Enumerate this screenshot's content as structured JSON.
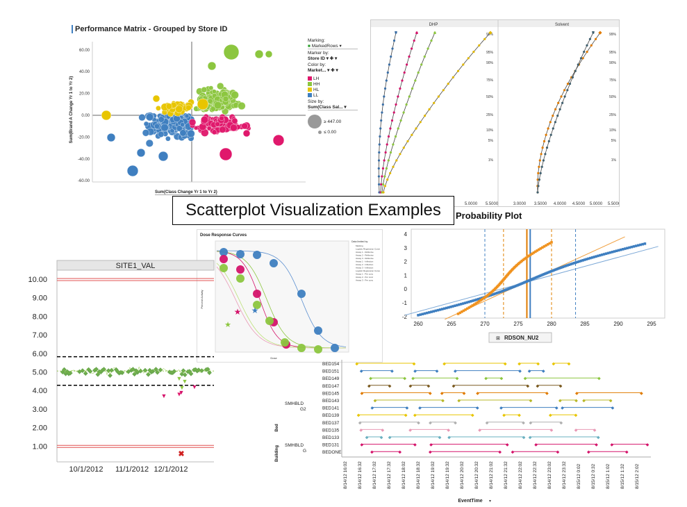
{
  "slide": {
    "title": "Scatterplot Visualization Examples"
  },
  "perf": {
    "title": "Performance Matrix - Grouped by Store ID",
    "ylabel": "Sum(Brand A Change Yr 1 to Yr 2)",
    "xlabel": "Sum(Class Change Yr 1 to Yr 2)",
    "yticks": [
      "60.00",
      "40.00",
      "20.00",
      "0.00",
      "-20.00",
      "-40.00",
      "-60.00"
    ],
    "marking_label": "Marking:",
    "marking_value": "MarkedRows",
    "markerby_label": "Marker by:",
    "markerby_value": "Store ID",
    "colorby_label": "Color by:",
    "colorby_value": "Market...",
    "legend": [
      {
        "label": "LH",
        "color": "#e0186c"
      },
      {
        "label": "HH",
        "color": "#8cc63f"
      },
      {
        "label": "HL",
        "color": "#e8c500"
      },
      {
        "label": "LL",
        "color": "#3f7fc0"
      }
    ],
    "sizeby_label": "Size by:",
    "sizeby_value": "Sum(Class Sal...",
    "size_max": "≥ 447.00",
    "size_min": "≤ 0.00"
  },
  "prob": {
    "panel_left": "DHP",
    "panel_right": "Solvent",
    "xticks_left": [
      "5.0000",
      "5.5000"
    ],
    "xticks_right": [
      "3.0000",
      "3.5000",
      "4.0000",
      "4.5000",
      "5.0000",
      "5.5000"
    ],
    "pct_labels": [
      "99%",
      "95%",
      "90%",
      "75%",
      "50%",
      "25%",
      "10%",
      "5%",
      "1%"
    ],
    "caption": "Probability Plot"
  },
  "dose": {
    "title": "Dose Response Curves",
    "ylabel": "Percent Activity",
    "xlabel": "Dose",
    "legend_title": "Data limited by:",
    "legend_items": [
      "Marking",
      "Logistic Regression Curve",
      "Assay 1 - Reflexive",
      "Assay 2 - Reflexive",
      "Assay 3 - Reflexive",
      "Assay 1 - Inflection",
      "Assay 2 - Inflection",
      "Assay 3 - Inflection",
      "Logistic Regression Curve",
      "Assay 1 - Per conc",
      "Assay 2 - Per conc",
      "Assay 3 - Per conc"
    ]
  },
  "site": {
    "title": "SITE1_VAL",
    "yticks": [
      "10.00",
      "9.00",
      "8.00",
      "7.00",
      "6.00",
      "5.00",
      "4.00",
      "3.00",
      "2.00",
      "1.00"
    ],
    "xticks": [
      "10/1/2012",
      "11/1/2012",
      "12/1/2012"
    ]
  },
  "qq": {
    "yticks": [
      "4",
      "3",
      "2",
      "1",
      "0",
      "-1",
      "-2"
    ],
    "xticks": [
      "260",
      "265",
      "270",
      "275",
      "280",
      "285",
      "290",
      "295"
    ],
    "xlabel": "RDSON_NU2"
  },
  "gantt": {
    "beds": [
      "BED154",
      "BED151",
      "BED149",
      "BED147",
      "BED145",
      "BED143",
      "BED141",
      "BED139",
      "BED137",
      "BED135",
      "BED133",
      "BED131",
      "BEDONE"
    ],
    "group1": "SMHBLD G2",
    "group2": "SMHBLD G",
    "axis_building": "Building",
    "axis_bed": "Bed",
    "xticks": [
      "8/14/12 16:02",
      "8/14/12 16:32",
      "8/14/12 17:02",
      "8/14/12 17:32",
      "8/14/12 18:02",
      "8/14/12 18:32",
      "8/14/12 19:02",
      "8/14/12 19:32",
      "8/14/12 20:02",
      "8/14/12 20:32",
      "8/14/12 21:02",
      "8/14/12 21:32",
      "8/14/12 22:02",
      "8/14/12 22:32",
      "8/14/12 23:02",
      "8/14/12 23:32",
      "8/15/12 0:02",
      "8/15/12 0:32",
      "8/15/12 1:02",
      "8/15/12 1:32",
      "8/15/12 2:02"
    ],
    "xlabel": "EventTime"
  }
}
